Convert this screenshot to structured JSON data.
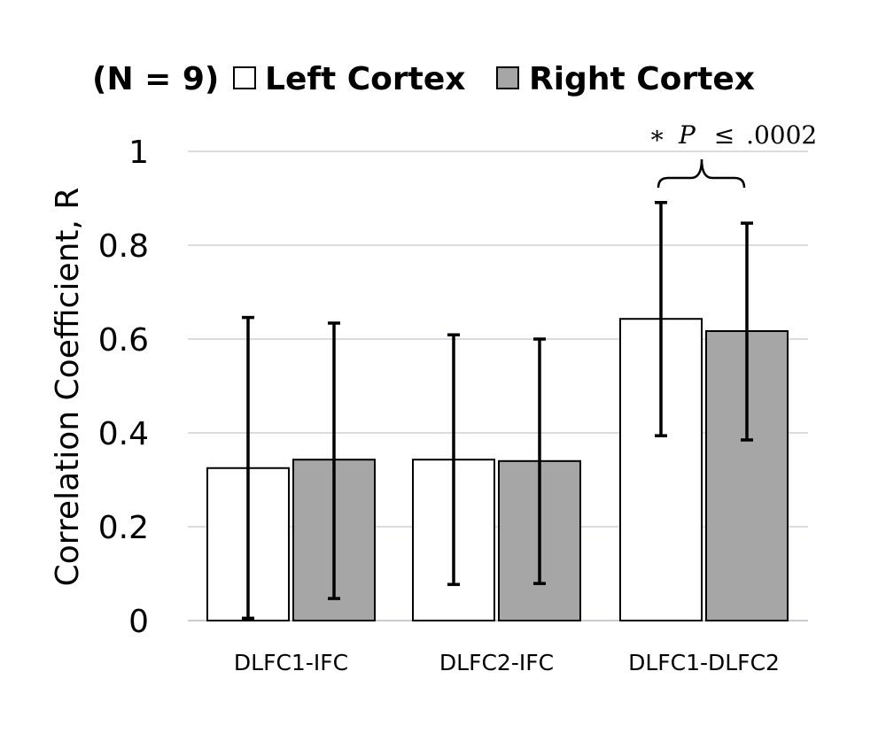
{
  "chart_data": {
    "type": "bar",
    "legend": {
      "prefix": "(N = 9)",
      "placement": "top"
    },
    "categories": [
      "DLFC1-IFC",
      "DLFC2-IFC",
      "DLFC1-DLFC2"
    ],
    "series": [
      {
        "name": "Left Cortex",
        "color": "#ffffff",
        "values": [
          0.325,
          0.343,
          0.643
        ],
        "error_low": [
          0.005,
          0.077,
          0.394
        ],
        "error_high": [
          0.646,
          0.609,
          0.891
        ]
      },
      {
        "name": "Right Cortex",
        "color": "#a6a6a6",
        "values": [
          0.343,
          0.34,
          0.617
        ],
        "error_low": [
          0.047,
          0.079,
          0.385
        ],
        "error_high": [
          0.634,
          0.6,
          0.847
        ]
      }
    ],
    "ylabel": "Correlation Coefficient, R",
    "xlabel": "",
    "ylim": [
      0,
      1
    ],
    "yticks": [
      {
        "value": 0,
        "label": "0"
      },
      {
        "value": 0.2,
        "label": "0.2"
      },
      {
        "value": 0.4,
        "label": "0.4"
      },
      {
        "value": 0.6,
        "label": "0.6"
      },
      {
        "value": 0.8,
        "label": "0.8"
      },
      {
        "value": 1,
        "label": "1"
      }
    ],
    "grid": true,
    "annotation": {
      "category": "DLFC1-DLFC2",
      "star": "∗",
      "symbol": "P",
      "relation": "≤",
      "value": ".0002"
    }
  }
}
